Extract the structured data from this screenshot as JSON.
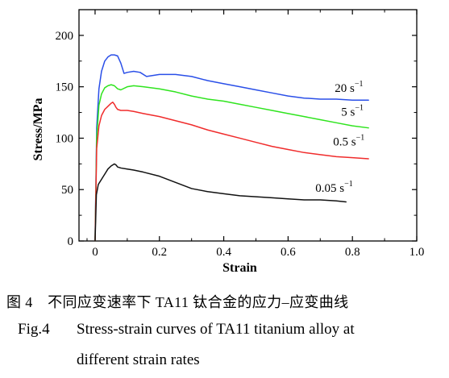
{
  "chart_data": {
    "type": "line",
    "title": "",
    "xlabel": "Strain",
    "ylabel": "Stress/MPa",
    "xlim": [
      -0.05,
      1.0
    ],
    "ylim": [
      0,
      225
    ],
    "xticks": [
      0,
      0.2,
      0.4,
      0.6,
      0.8,
      1.0
    ],
    "xtick_labels": [
      "0",
      "0.2",
      "0.4",
      "0.6",
      "0.8",
      "1.0"
    ],
    "yticks": [
      0,
      50,
      100,
      150,
      200
    ],
    "ytick_labels": [
      "0",
      "50",
      "100",
      "150",
      "200"
    ],
    "grid": false,
    "legend": "inline labels at right end of each curve",
    "series": [
      {
        "name": "20 s",
        "label_superscript": "−1",
        "color": "#2a4fe8",
        "x": [
          0,
          0.005,
          0.012,
          0.02,
          0.03,
          0.04,
          0.05,
          0.06,
          0.07,
          0.08,
          0.09,
          0.1,
          0.12,
          0.14,
          0.16,
          0.18,
          0.2,
          0.25,
          0.3,
          0.35,
          0.4,
          0.45,
          0.5,
          0.55,
          0.6,
          0.65,
          0.7,
          0.75,
          0.8,
          0.85
        ],
        "y": [
          0,
          110,
          148,
          165,
          175,
          179,
          181,
          181,
          180,
          173,
          163,
          164,
          165,
          164,
          160,
          161,
          162,
          162,
          160,
          156,
          153,
          150,
          147,
          144,
          141,
          139,
          138,
          138,
          137,
          137
        ]
      },
      {
        "name": "5 s",
        "label_superscript": "−1",
        "color": "#2fe41e",
        "x": [
          0,
          0.005,
          0.012,
          0.02,
          0.03,
          0.04,
          0.05,
          0.06,
          0.07,
          0.08,
          0.1,
          0.12,
          0.15,
          0.2,
          0.25,
          0.3,
          0.35,
          0.4,
          0.45,
          0.5,
          0.55,
          0.6,
          0.65,
          0.7,
          0.75,
          0.8,
          0.85
        ],
        "y": [
          0,
          100,
          132,
          143,
          149,
          151,
          152,
          151,
          148,
          147,
          150,
          151,
          150,
          148,
          145,
          141,
          138,
          136,
          133,
          130,
          127,
          124,
          121,
          118,
          115,
          112,
          110
        ]
      },
      {
        "name": "0.5 s",
        "label_superscript": "−1",
        "color": "#f02c2c",
        "x": [
          0,
          0.005,
          0.012,
          0.02,
          0.03,
          0.04,
          0.05,
          0.055,
          0.06,
          0.065,
          0.07,
          0.08,
          0.1,
          0.12,
          0.15,
          0.2,
          0.25,
          0.3,
          0.35,
          0.4,
          0.45,
          0.5,
          0.55,
          0.6,
          0.65,
          0.7,
          0.75,
          0.8,
          0.85
        ],
        "y": [
          0,
          90,
          112,
          122,
          128,
          131,
          134,
          135,
          133,
          130,
          128,
          127,
          127,
          126,
          124,
          121,
          117,
          113,
          108,
          104,
          100,
          96,
          92,
          89,
          86,
          84,
          82,
          81,
          80
        ]
      },
      {
        "name": "0.05 s",
        "label_superscript": "−1",
        "color": "#111111",
        "x": [
          0,
          0.004,
          0.01,
          0.02,
          0.03,
          0.04,
          0.05,
          0.06,
          0.065,
          0.07,
          0.08,
          0.1,
          0.12,
          0.15,
          0.2,
          0.25,
          0.3,
          0.35,
          0.4,
          0.45,
          0.5,
          0.55,
          0.6,
          0.65,
          0.7,
          0.75,
          0.78
        ],
        "y": [
          0,
          45,
          55,
          60,
          65,
          70,
          73,
          75,
          74,
          72,
          71,
          70,
          69,
          67,
          63,
          57,
          51,
          48,
          46,
          44,
          43,
          42,
          41,
          40,
          40,
          39,
          38
        ]
      }
    ],
    "annotations": [
      {
        "text": "20 s",
        "sup": "−1",
        "x": 0.745,
        "y": 145
      },
      {
        "text": "5 s",
        "sup": "−1",
        "x": 0.765,
        "y": 122
      },
      {
        "text": "0.5 s",
        "sup": "−1",
        "x": 0.74,
        "y": 93
      },
      {
        "text": "0.05 s",
        "sup": "−1",
        "x": 0.685,
        "y": 48
      }
    ]
  },
  "caption": {
    "cn": "图 4　不同应变速率下 TA11 钛合金的应力–应变曲线",
    "en_number": "Fig.4",
    "en_line1": "Stress-strain curves of TA11 titanium alloy at",
    "en_line2": "different strain rates"
  }
}
